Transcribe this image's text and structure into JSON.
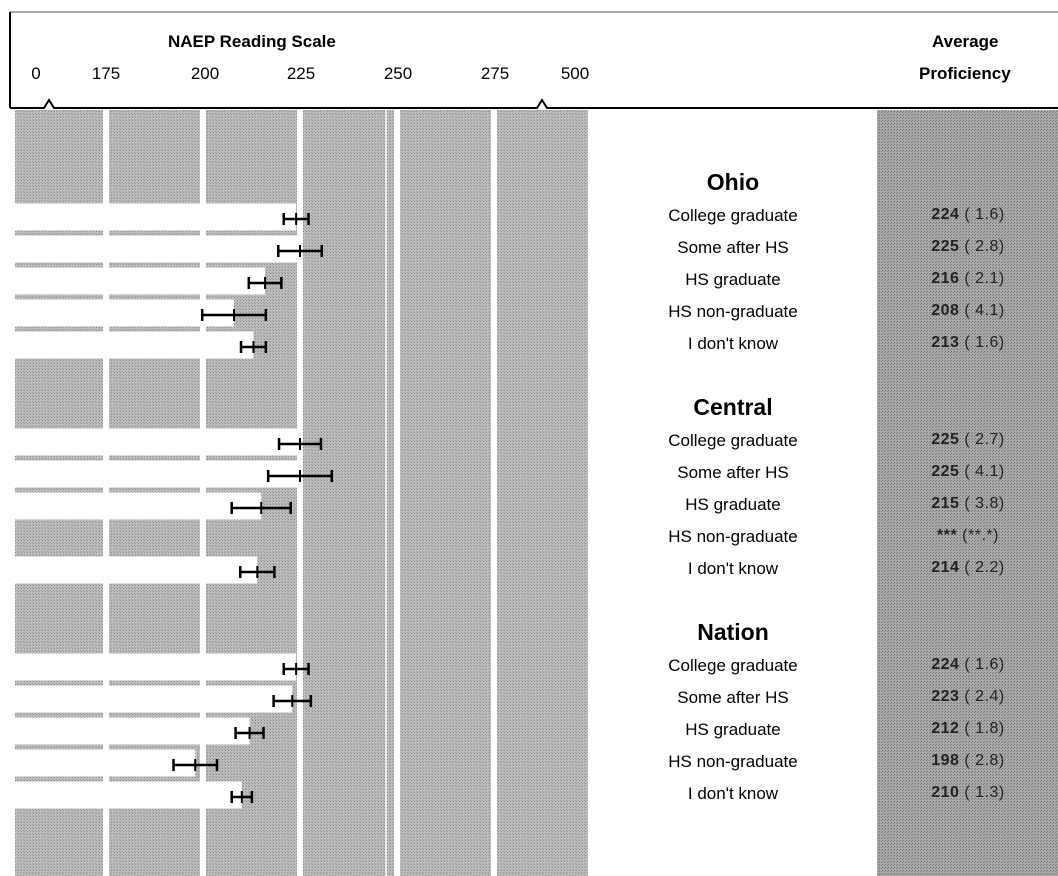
{
  "header": {
    "scale_title": "NAEP Reading Scale",
    "proficiency_title_line1": "Average",
    "proficiency_title_line2": "Proficiency"
  },
  "chart_data": {
    "type": "bar",
    "title": "NAEP Reading Scale",
    "tick_labels": [
      "0",
      "175",
      "200",
      "225",
      "250",
      "275",
      "500"
    ],
    "axis_breaks": [
      "0-175",
      "275-500"
    ],
    "grid": true,
    "bar_color": "#ffffff",
    "background_color": "#b5b5b5",
    "error_bar_color": "#000000",
    "groups": [
      {
        "name": "Ohio",
        "rows": [
          {
            "label": "College graduate",
            "value": 224,
            "se": 1.6,
            "proficiency_text": "224",
            "se_text": "( 1.6)"
          },
          {
            "label": "Some after HS",
            "value": 225,
            "se": 2.8,
            "proficiency_text": "225",
            "se_text": "( 2.8)"
          },
          {
            "label": "HS graduate",
            "value": 216,
            "se": 2.1,
            "proficiency_text": "216",
            "se_text": "( 2.1)"
          },
          {
            "label": "HS non-graduate",
            "value": 208,
            "se": 4.1,
            "proficiency_text": "208",
            "se_text": "( 4.1)"
          },
          {
            "label": "I don't know",
            "value": 213,
            "se": 1.6,
            "proficiency_text": "213",
            "se_text": "( 1.6)"
          }
        ]
      },
      {
        "name": "Central",
        "rows": [
          {
            "label": "College graduate",
            "value": 225,
            "se": 2.7,
            "proficiency_text": "225",
            "se_text": "( 2.7)"
          },
          {
            "label": "Some after HS",
            "value": 225,
            "se": 4.1,
            "proficiency_text": "225",
            "se_text": "( 4.1)"
          },
          {
            "label": "HS graduate",
            "value": 215,
            "se": 3.8,
            "proficiency_text": "215",
            "se_text": "( 3.8)"
          },
          {
            "label": "HS non-graduate",
            "value": null,
            "se": null,
            "proficiency_text": "***",
            "se_text": "(**.*)"
          },
          {
            "label": "I don't know",
            "value": 214,
            "se": 2.2,
            "proficiency_text": "214",
            "se_text": "( 2.2)"
          }
        ]
      },
      {
        "name": "Nation",
        "rows": [
          {
            "label": "College graduate",
            "value": 224,
            "se": 1.6,
            "proficiency_text": "224",
            "se_text": "( 1.6)"
          },
          {
            "label": "Some after HS",
            "value": 223,
            "se": 2.4,
            "proficiency_text": "223",
            "se_text": "( 2.4)"
          },
          {
            "label": "HS graduate",
            "value": 212,
            "se": 1.8,
            "proficiency_text": "212",
            "se_text": "( 1.8)"
          },
          {
            "label": "HS non-graduate",
            "value": 198,
            "se": 2.8,
            "proficiency_text": "198",
            "se_text": "( 2.8)"
          },
          {
            "label": "I don't know",
            "value": 210,
            "se": 1.3,
            "proficiency_text": "210",
            "se_text": "( 1.3)"
          }
        ]
      }
    ]
  }
}
